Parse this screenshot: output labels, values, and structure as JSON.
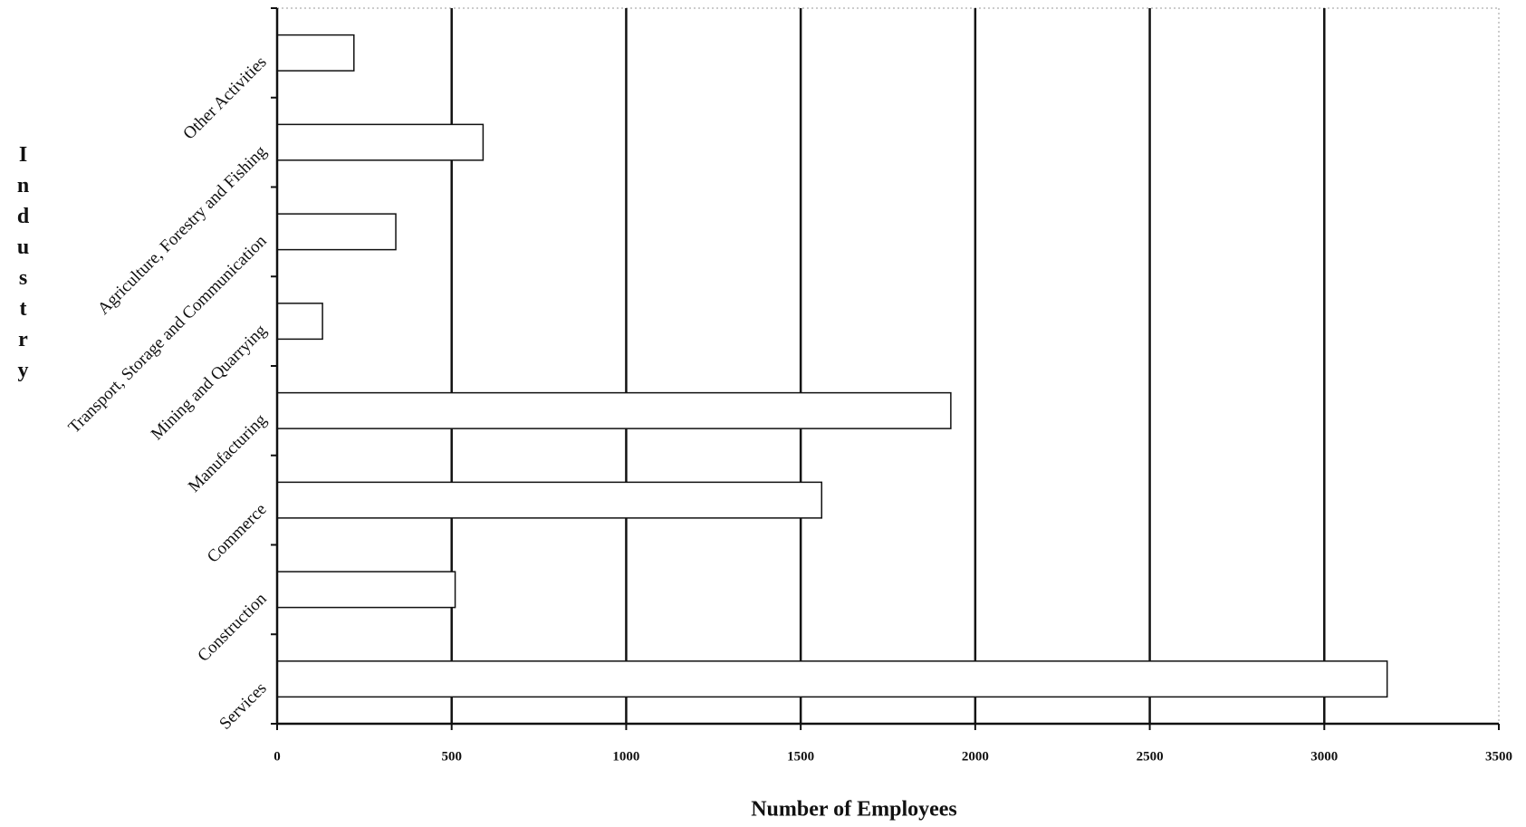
{
  "chart_data": {
    "type": "barh",
    "x_label": "Number of Employees",
    "y_label": "Industry",
    "categories": [
      "Services",
      "Construction",
      "Commerce",
      "Manufacturing",
      "Mining and Quarrying",
      "Transport, Storage and Communication",
      "Agriculture, Forestry and Fishing",
      "Other Activities"
    ],
    "values": [
      3180,
      510,
      1560,
      1930,
      130,
      340,
      590,
      220
    ],
    "color": "#ffffff",
    "xlim": [
      0,
      3500
    ],
    "xticks": [
      0,
      500,
      1000,
      1500,
      2000,
      2500,
      3000,
      3500
    ],
    "grid": true
  }
}
